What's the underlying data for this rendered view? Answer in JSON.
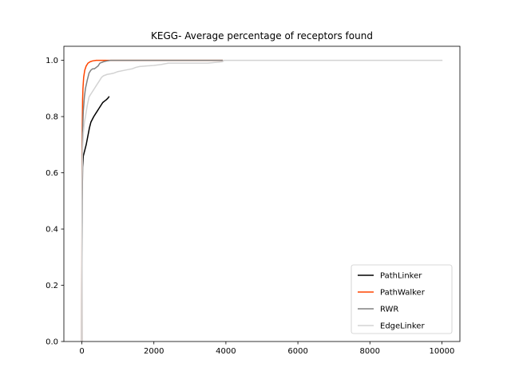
{
  "chart_data": {
    "type": "line",
    "title": "KEGG- Average percentage of receptors found",
    "xlabel": "",
    "ylabel": "",
    "xlim": [
      -500,
      10500
    ],
    "ylim": [
      0.0,
      1.05
    ],
    "xticks": [
      0,
      2000,
      4000,
      6000,
      8000,
      10000
    ],
    "yticks": [
      0.0,
      0.2,
      0.4,
      0.6,
      0.8,
      1.0
    ],
    "xtick_labels": [
      "0",
      "2000",
      "4000",
      "6000",
      "8000",
      "10000"
    ],
    "ytick_labels": [
      "0.0",
      "0.2",
      "0.4",
      "0.6",
      "0.8",
      "1.0"
    ],
    "grid": false,
    "legend_position": "lower-right",
    "series": [
      {
        "name": "PathLinker",
        "color": "#000000",
        "x": [
          0,
          5,
          10,
          20,
          40,
          60,
          80,
          100,
          120,
          150,
          180,
          210,
          250,
          290,
          330,
          380,
          430,
          480,
          530,
          580,
          630,
          680,
          720,
          750
        ],
        "y": [
          0.0,
          0.3,
          0.5,
          0.62,
          0.66,
          0.67,
          0.68,
          0.69,
          0.7,
          0.72,
          0.74,
          0.76,
          0.78,
          0.79,
          0.8,
          0.81,
          0.82,
          0.83,
          0.84,
          0.85,
          0.855,
          0.86,
          0.865,
          0.87
        ]
      },
      {
        "name": "PathWalker",
        "color": "#ff4500",
        "x": [
          0,
          5,
          10,
          20,
          30,
          50,
          80,
          120,
          170,
          230,
          300,
          400,
          500,
          700,
          1000,
          3900
        ],
        "y": [
          0.0,
          0.55,
          0.75,
          0.86,
          0.9,
          0.94,
          0.965,
          0.98,
          0.99,
          0.995,
          0.998,
          1.0,
          1.0,
          1.0,
          1.0,
          1.0
        ]
      },
      {
        "name": "RWR",
        "color": "#808080",
        "x": [
          0,
          5,
          10,
          20,
          40,
          70,
          100,
          150,
          200,
          250,
          300,
          350,
          400,
          450,
          500,
          600,
          700,
          800,
          1000,
          1500,
          3900
        ],
        "y": [
          0.0,
          0.45,
          0.65,
          0.75,
          0.82,
          0.87,
          0.9,
          0.93,
          0.955,
          0.965,
          0.97,
          0.97,
          0.975,
          0.98,
          0.99,
          0.995,
          0.998,
          1.0,
          1.0,
          1.0,
          1.0
        ]
      },
      {
        "name": "EdgeLinker",
        "color": "#d3d3d3",
        "x": [
          0,
          5,
          10,
          20,
          40,
          70,
          100,
          150,
          200,
          250,
          300,
          350,
          400,
          450,
          500,
          550,
          600,
          700,
          800,
          900,
          1000,
          1200,
          1400,
          1500,
          1600,
          1800,
          2000,
          2200,
          2400,
          2600,
          3000,
          3500,
          3900,
          3950,
          10000
        ],
        "y": [
          0.0,
          0.4,
          0.58,
          0.68,
          0.74,
          0.78,
          0.8,
          0.84,
          0.87,
          0.88,
          0.89,
          0.9,
          0.91,
          0.92,
          0.93,
          0.94,
          0.945,
          0.95,
          0.952,
          0.955,
          0.96,
          0.965,
          0.97,
          0.975,
          0.978,
          0.98,
          0.982,
          0.985,
          0.99,
          0.99,
          0.99,
          0.99,
          0.995,
          1.0,
          1.0
        ]
      }
    ]
  }
}
